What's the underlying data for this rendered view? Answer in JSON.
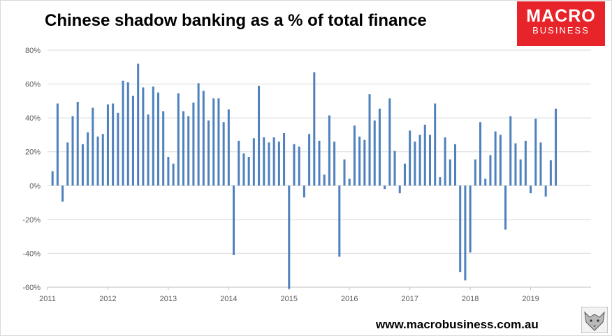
{
  "header": {
    "title": "Chinese shadow banking as a % of total finance"
  },
  "logo": {
    "line1": "MACRO",
    "line2": "BUSINESS"
  },
  "footer": {
    "source": "www.macrobusiness.com.au"
  },
  "chart_data": {
    "type": "bar",
    "title": "Chinese shadow banking as a % of total finance",
    "xlabel": "",
    "ylabel": "",
    "ylim": [
      -60,
      80
    ],
    "yticks": [
      "80%",
      "60%",
      "40%",
      "20%",
      "0%",
      "-20%",
      "-40%",
      "-60%"
    ],
    "ytick_values": [
      80,
      60,
      40,
      20,
      0,
      -20,
      -40,
      -60
    ],
    "x_tick_labels": [
      "2011",
      "2012",
      "2013",
      "2014",
      "2015",
      "2016",
      "2017",
      "2018",
      "2019"
    ],
    "start": "2011-01",
    "frequency": "monthly",
    "grid": true,
    "legend": "none",
    "bar_color": "#4f81bd",
    "values": [
      8.5,
      48.5,
      -9.5,
      25.5,
      41,
      49.5,
      24.5,
      31.5,
      46,
      29,
      30.5,
      48,
      48.5,
      43,
      62,
      61,
      53,
      72,
      58,
      42,
      58.5,
      55,
      44,
      17,
      13,
      54.5,
      44,
      41,
      49,
      60.5,
      56,
      38.5,
      51.5,
      51.5,
      37.5,
      45,
      -41,
      26.5,
      19,
      17,
      28,
      59,
      28.5,
      25.5,
      28.5,
      26,
      31,
      -61,
      24.5,
      23,
      -7,
      30.5,
      67,
      26.5,
      6.5,
      41.5,
      26,
      -42,
      15.5,
      4,
      35.5,
      29,
      27,
      54,
      38.5,
      45.5,
      -2,
      51.5,
      20.5,
      -4.5,
      13,
      32.5,
      26,
      30,
      36,
      30,
      48.5,
      5,
      28.5,
      15.5,
      24.5,
      -51,
      -56,
      -39.5,
      15.5,
      37.5,
      4,
      18,
      32,
      30,
      -26,
      41,
      25,
      15.5,
      26.5,
      -4.5,
      39.5,
      25.5,
      -6.5,
      15,
      45.5
    ]
  }
}
